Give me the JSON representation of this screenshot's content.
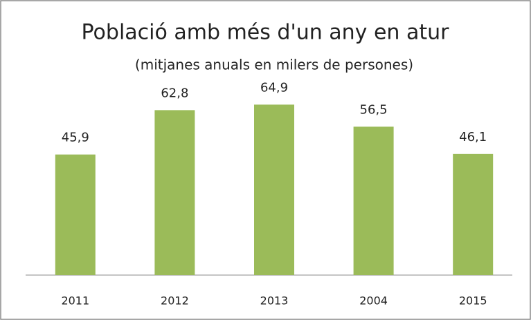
{
  "chart_data": {
    "type": "bar",
    "title": "Població amb més d'un any en atur",
    "subtitle": "(mitjanes anuals en milers de persones)",
    "categories": [
      "2011",
      "2012",
      "2013",
      "2004",
      "2015"
    ],
    "values": [
      45.9,
      62.8,
      64.9,
      56.5,
      46.1
    ],
    "value_labels": [
      "45,9",
      "62,8",
      "64,9",
      "56,5",
      "46,1"
    ],
    "color": "#9bbb59"
  }
}
